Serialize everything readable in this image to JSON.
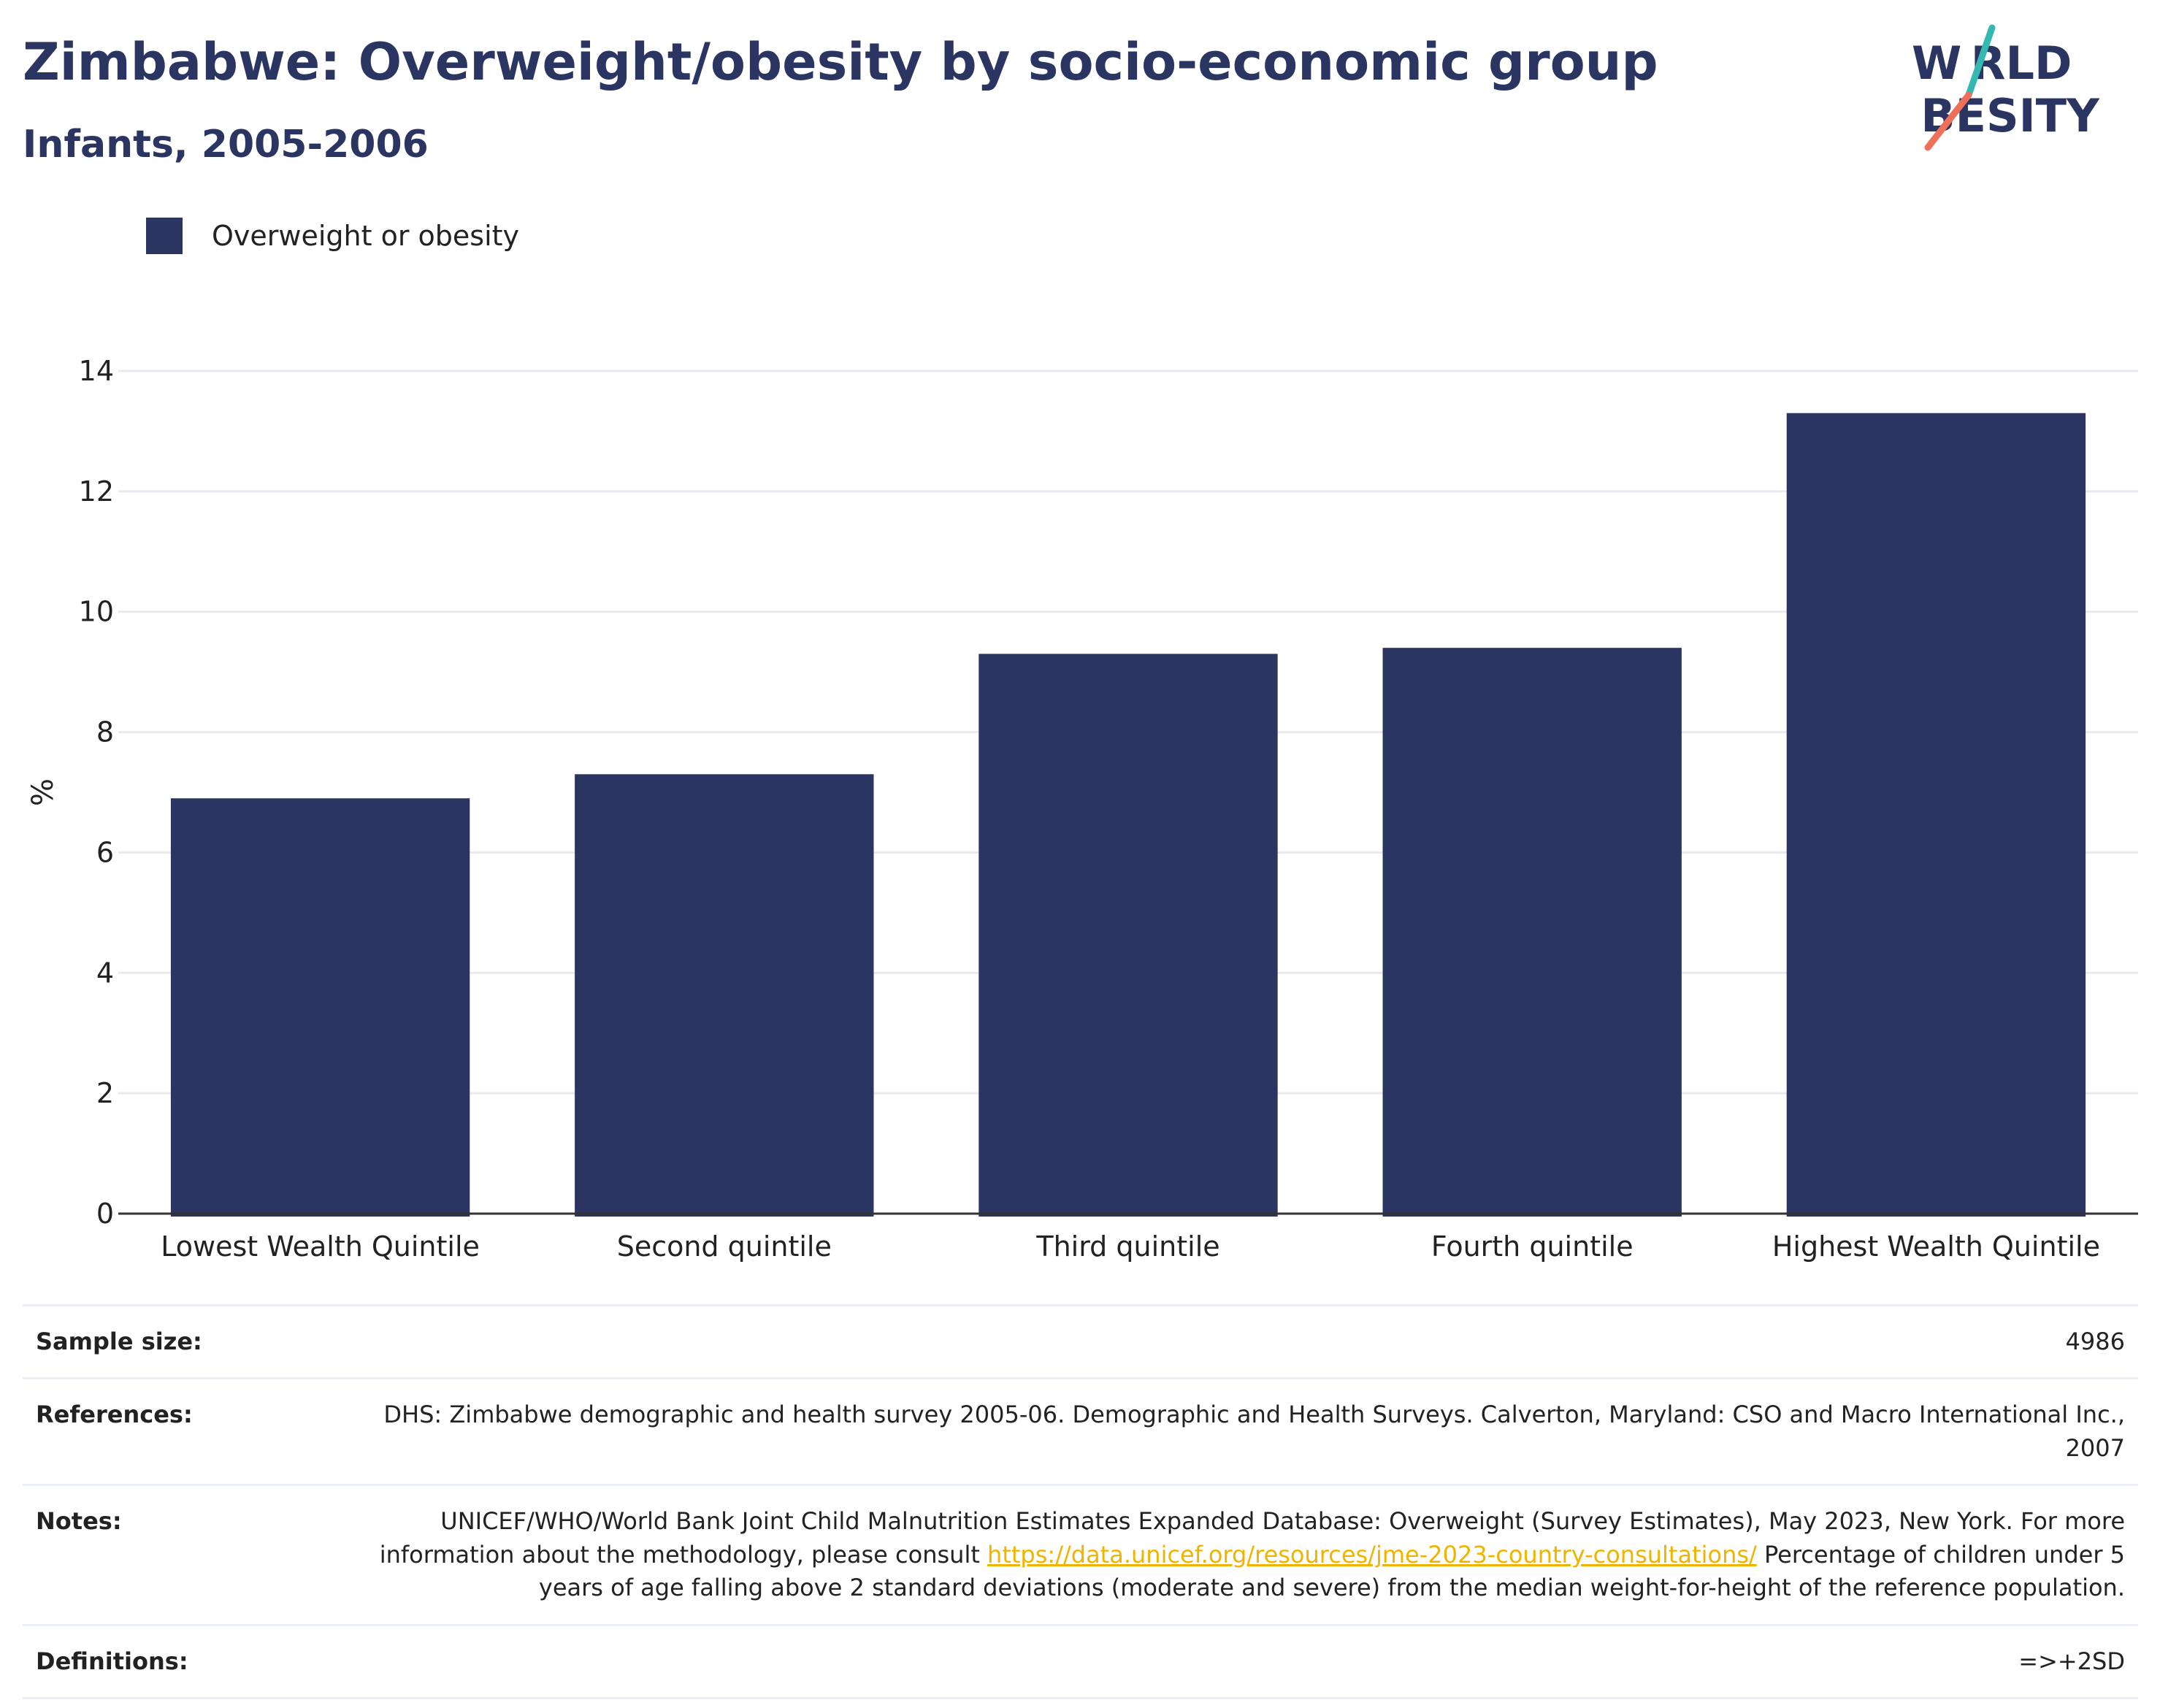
{
  "header": {
    "title": "Zimbabwe: Overweight/obesity by socio-economic group",
    "subtitle": "Infants, 2005-2006"
  },
  "logo": {
    "line1": "W RLD",
    "line2": " BESITY",
    "brand_color": "#2a3562",
    "accent_colors": [
      "#35b8b1",
      "#ee6f5a"
    ]
  },
  "legend": {
    "series_label": "Overweight or obesity",
    "color": "#2a3562"
  },
  "chart_data": {
    "type": "bar",
    "categories": [
      "Lowest Wealth Quintile",
      "Second quintile",
      "Third quintile",
      "Fourth quintile",
      "Highest Wealth Quintile"
    ],
    "series": [
      {
        "name": "Overweight or obesity",
        "values": [
          6.9,
          7.3,
          9.3,
          9.4,
          13.3
        ]
      }
    ],
    "ylabel": "%",
    "ylim": [
      0,
      14
    ],
    "yticks": [
      0,
      2,
      4,
      6,
      8,
      10,
      12,
      14
    ],
    "grid": true,
    "legend_position": "top-left",
    "bar_color": "#2a3562"
  },
  "info": {
    "sample_size_label": "Sample size:",
    "sample_size_value": "4986",
    "references_label": "References:",
    "references_value": "DHS: Zimbabwe demographic and health survey 2005-06. Demographic and Health Surveys. Calverton, Maryland: CSO and Macro International Inc., 2007",
    "notes_label": "Notes:",
    "notes_text_1": "UNICEF/WHO/World Bank Joint Child Malnutrition Estimates Expanded Database: Overweight (Survey Estimates), May 2023, New York. For more information about the methodology, please consult",
    "notes_link": "https://data.unicef.org/resources/jme-2023-country-consultations/",
    "notes_text_2": "Percentage of children under 5 years of age falling above 2 standard deviations (moderate and severe) from the median weight-for-height of the reference population.",
    "definitions_label": "Definitions:",
    "definitions_value": "=>+2SD"
  }
}
